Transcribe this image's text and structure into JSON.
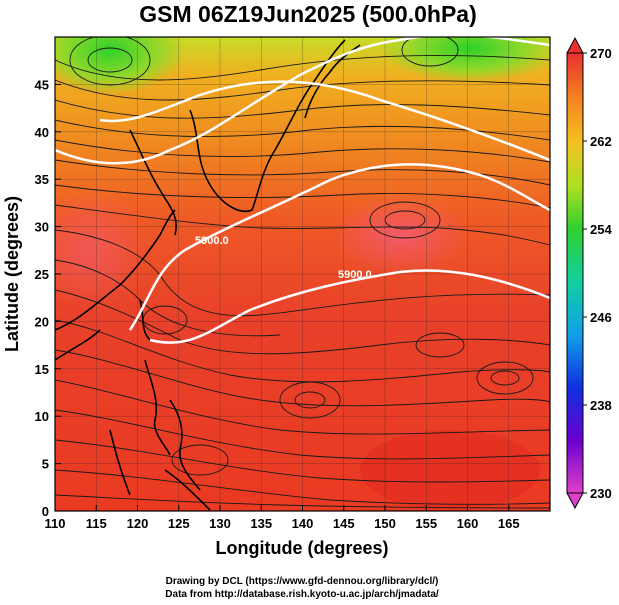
{
  "title": "GSM 06Z19Jun2025 (500.0hPa)",
  "x_axis": {
    "label": "Longitude (degrees)",
    "min": 110,
    "max": 170,
    "ticks": [
      "110",
      "115",
      "120",
      "125",
      "130",
      "135",
      "140",
      "145",
      "150",
      "155",
      "160",
      "165"
    ]
  },
  "y_axis": {
    "label": "Latitude  (degrees)",
    "min": 0,
    "max": 50,
    "ticks": [
      "0",
      "5",
      "10",
      "15",
      "20",
      "25",
      "30",
      "35",
      "40",
      "45"
    ]
  },
  "colorbar": {
    "min": 230,
    "max": 270,
    "ticks": [
      "230",
      "238",
      "246",
      "254",
      "262",
      "270"
    ]
  },
  "contours": [
    {
      "label": "5900.0"
    },
    {
      "label": "5900.0"
    }
  ],
  "credits": {
    "line1": "Drawing by DCL (https://www.gfd-dennou.org/library/dcl/)",
    "line2": "Data from http://database.rish.kyoto-u.ac.jp/arch/jmadata/"
  },
  "colors": {
    "high": "#e8302a",
    "mid": "#f5a21f",
    "low": "#3fd62b"
  }
}
